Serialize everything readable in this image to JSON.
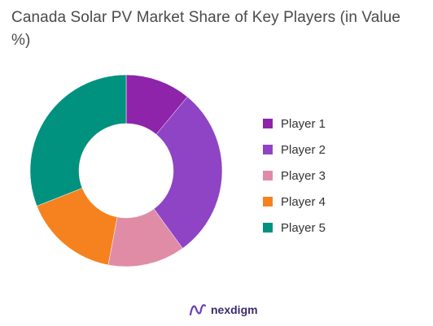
{
  "chart_data": {
    "type": "pie",
    "title": "Canada Solar PV Market Share of Key Players (in Value %)",
    "donut": true,
    "legend_position": "right",
    "categories": [
      "Player 1",
      "Player 2",
      "Player 3",
      "Player 4",
      "Player 5"
    ],
    "values": [
      11,
      29,
      13,
      16,
      31
    ],
    "colors": [
      "#8e24aa",
      "#8e44c4",
      "#e08ca6",
      "#f5821f",
      "#00917f"
    ]
  },
  "brand": {
    "name": "nexdigm",
    "icon": "nexdigm-logo-icon"
  }
}
